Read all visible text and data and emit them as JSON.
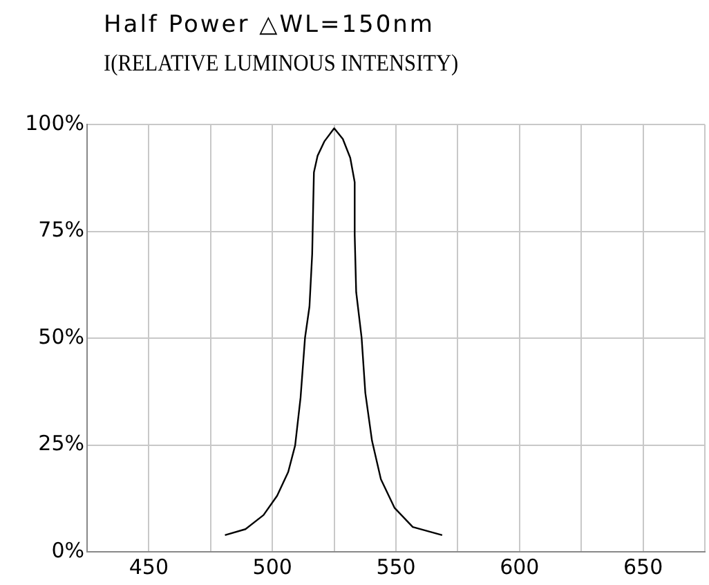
{
  "chart_data": {
    "type": "line",
    "title": "Half Power △WL=150nm",
    "subtitle": "I(RELATIVE LUMINOUS INTENSITY)",
    "x": [
      480.8,
      489.1,
      496.4,
      501.9,
      506.4,
      509.2,
      511.4,
      513.2,
      515.0,
      516.1,
      516.5,
      516.8,
      518.3,
      521.1,
      525,
      528.5,
      531.5,
      533.3,
      533.3,
      533.9,
      536.1,
      537.6,
      540.3,
      543.9,
      549.4,
      556.8,
      568.7
    ],
    "series": [
      {
        "color": "#000000",
        "values": [
          3.9,
          5.3,
          8.6,
          13.1,
          18.7,
          24.9,
          36.1,
          50.1,
          57.4,
          69.7,
          80.9,
          88.8,
          92.7,
          96.1,
          99.1,
          96.6,
          92.2,
          86.5,
          74.2,
          60.8,
          50.1,
          37.2,
          26.0,
          17.0,
          10.3,
          5.8,
          3.9
        ]
      }
    ],
    "xlim": [
      425,
      675
    ],
    "xticks": [
      {
        "value": 425,
        "label": null
      },
      450,
      {
        "value": 475,
        "label": null
      },
      500,
      {
        "value": 525,
        "label": null
      },
      550,
      {
        "value": 575,
        "label": null
      },
      600,
      {
        "value": 625,
        "label": null
      },
      650,
      {
        "value": 675,
        "label": null
      }
    ],
    "ylim": [
      0,
      100
    ],
    "yticks": [
      {
        "value": 0,
        "label": "0%"
      },
      {
        "value": 25,
        "label": "25%"
      },
      {
        "value": 50,
        "label": "50%"
      },
      {
        "value": 75,
        "label": "75%"
      },
      {
        "value": 100,
        "label": "100%"
      }
    ],
    "grid": true,
    "marker": "none",
    "line_style": "solid",
    "legend": false
  }
}
